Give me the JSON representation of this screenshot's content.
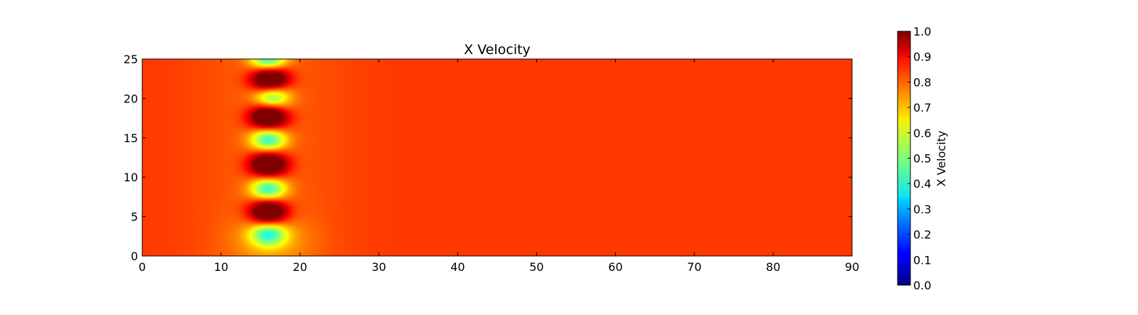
{
  "chart_data": {
    "type": "heatmap",
    "title": "X Velocity",
    "xlabel": "",
    "ylabel": "",
    "xlim": [
      0,
      90
    ],
    "ylim": [
      0,
      25
    ],
    "x_ticks": [
      0,
      10,
      20,
      30,
      40,
      50,
      60,
      70,
      80,
      90
    ],
    "y_ticks": [
      0,
      5,
      10,
      15,
      20,
      25
    ],
    "colormap": "jet",
    "clim": [
      0.0,
      1.0
    ],
    "background_value": 0.82,
    "features": [
      {
        "kind": "high",
        "x": 16.2,
        "y": 22.4,
        "value": 1.0
      },
      {
        "kind": "high",
        "x": 16.0,
        "y": 17.6,
        "value": 1.0
      },
      {
        "kind": "high",
        "x": 16.0,
        "y": 11.6,
        "value": 1.0
      },
      {
        "kind": "high",
        "x": 16.0,
        "y": 5.6,
        "value": 1.0
      },
      {
        "kind": "low",
        "x": 16.0,
        "y": 25.0,
        "value": 0.45
      },
      {
        "kind": "low",
        "x": 16.5,
        "y": 20.2,
        "value": 0.5
      },
      {
        "kind": "low",
        "x": 16.0,
        "y": 14.8,
        "value": 0.45
      },
      {
        "kind": "low",
        "x": 16.0,
        "y": 8.5,
        "value": 0.45
      },
      {
        "kind": "low",
        "x": 16.0,
        "y": 2.8,
        "value": 0.5
      }
    ],
    "colorbar": {
      "label": "X Velocity",
      "ticks": [
        "0.0",
        "0.1",
        "0.2",
        "0.3",
        "0.4",
        "0.5",
        "0.6",
        "0.7",
        "0.8",
        "0.9",
        "1.0"
      ]
    }
  }
}
